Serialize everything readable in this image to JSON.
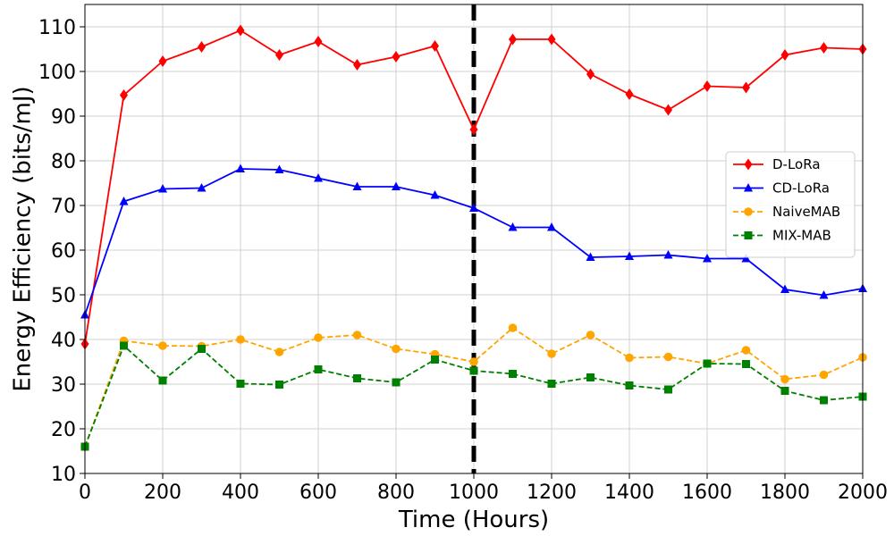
{
  "chart_data": {
    "type": "line",
    "xlabel": "Time (Hours)",
    "ylabel": "Energy Efficiency (bits/mJ)",
    "xlim": [
      0,
      2000
    ],
    "ylim": [
      10,
      115
    ],
    "xticks": [
      0,
      200,
      400,
      600,
      800,
      1000,
      1200,
      1400,
      1600,
      1800,
      2000
    ],
    "yticks": [
      10,
      20,
      30,
      40,
      50,
      60,
      70,
      80,
      90,
      100,
      110
    ],
    "grid": true,
    "legend_position": "center-right",
    "vline": {
      "x": 1000,
      "color": "#000000",
      "style": "dashed"
    },
    "x": [
      0,
      100,
      200,
      300,
      400,
      500,
      600,
      700,
      800,
      900,
      1000,
      1100,
      1200,
      1300,
      1400,
      1500,
      1600,
      1700,
      1800,
      1900,
      2000
    ],
    "series": [
      {
        "name": "D-LoRa",
        "color": "#ff0000",
        "marker": "diamond",
        "linestyle": "solid",
        "values": [
          39,
          94.7,
          102.3,
          105.5,
          109.2,
          103.7,
          106.7,
          101.5,
          103.3,
          105.7,
          87,
          107.2,
          107.2,
          99.4,
          94.9,
          91.4,
          96.7,
          96.4,
          103.7,
          105.3,
          105
        ]
      },
      {
        "name": "CD-LoRa",
        "color": "#0000ff",
        "marker": "triangle",
        "linestyle": "solid",
        "values": [
          45.5,
          70.9,
          73.7,
          73.9,
          78.2,
          78,
          76.1,
          74.2,
          74.2,
          72.3,
          69.4,
          65.1,
          65.1,
          58.4,
          58.6,
          58.9,
          58.1,
          58.1,
          51.2,
          49.9,
          51.4
        ]
      },
      {
        "name": "NaiveMAB",
        "color": "#ffa500",
        "marker": "circle",
        "linestyle": "dashed",
        "values": [
          16,
          39.7,
          38.6,
          38.5,
          40,
          37.2,
          40.4,
          41,
          37.9,
          36.7,
          35,
          42.6,
          36.8,
          41,
          35.9,
          36.1,
          34.6,
          37.6,
          31.1,
          32.1,
          36
        ]
      },
      {
        "name": "MIX-MAB",
        "color": "#008000",
        "marker": "square",
        "linestyle": "dashed",
        "values": [
          16,
          38.6,
          30.8,
          37.9,
          30.1,
          29.9,
          33.3,
          31.3,
          30.4,
          35.5,
          33,
          32.3,
          30.1,
          31.5,
          29.7,
          28.8,
          34.6,
          34.5,
          28.5,
          26.4,
          27.2
        ]
      }
    ]
  }
}
